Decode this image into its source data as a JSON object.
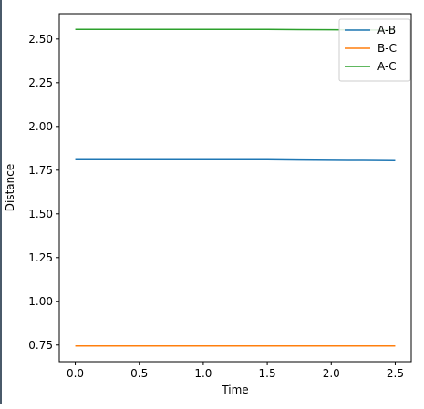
{
  "chart_data": {
    "type": "line",
    "title": "",
    "xlabel": "Time",
    "ylabel": "Distance",
    "xlim": [
      -0.125,
      2.625
    ],
    "ylim": [
      0.655,
      2.645
    ],
    "x_ticks": [
      0.0,
      0.5,
      1.0,
      1.5,
      2.0,
      2.5
    ],
    "x_tick_labels": [
      "0.0",
      "0.5",
      "1.0",
      "1.5",
      "2.0",
      "2.5"
    ],
    "y_ticks": [
      0.75,
      1.0,
      1.25,
      1.5,
      1.75,
      2.0,
      2.25,
      2.5
    ],
    "y_tick_labels": [
      "0.75",
      "1.00",
      "1.25",
      "1.50",
      "1.75",
      "2.00",
      "2.25",
      "2.50"
    ],
    "grid": false,
    "legend_position": "top-right",
    "series": [
      {
        "name": "A-B",
        "color": "#1f77b4",
        "x": [
          0.0,
          0.25,
          0.5,
          0.75,
          1.0,
          1.25,
          1.5,
          1.75,
          2.0,
          2.25,
          2.5
        ],
        "y": [
          1.81,
          1.81,
          1.81,
          1.81,
          1.81,
          1.81,
          1.81,
          1.808,
          1.807,
          1.806,
          1.805
        ]
      },
      {
        "name": "B-C",
        "color": "#ff7f0e",
        "x": [
          0.0,
          0.25,
          0.5,
          0.75,
          1.0,
          1.25,
          1.5,
          1.75,
          2.0,
          2.25,
          2.5
        ],
        "y": [
          0.745,
          0.745,
          0.745,
          0.745,
          0.745,
          0.745,
          0.745,
          0.745,
          0.745,
          0.745,
          0.745
        ]
      },
      {
        "name": "A-C",
        "color": "#2ca02c",
        "x": [
          0.0,
          0.25,
          0.5,
          0.75,
          1.0,
          1.25,
          1.5,
          1.75,
          2.0,
          2.25,
          2.5
        ],
        "y": [
          2.555,
          2.555,
          2.555,
          2.555,
          2.555,
          2.555,
          2.555,
          2.554,
          2.553,
          2.552,
          2.552
        ]
      }
    ]
  }
}
